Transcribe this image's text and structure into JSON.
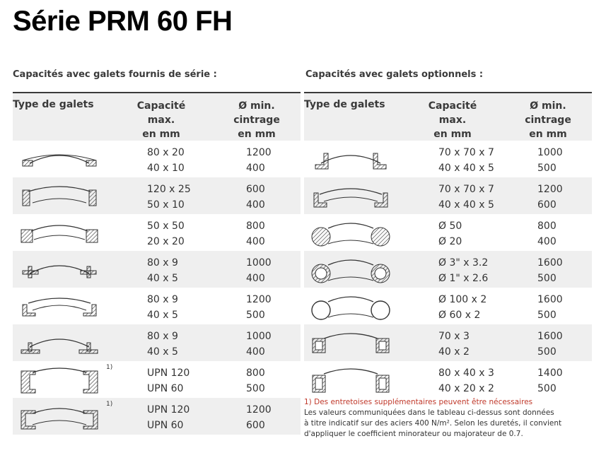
{
  "title": "Série PRM 60 FH",
  "left": {
    "heading": "Capacités avec galets fournis de série :",
    "columns": [
      "Type de galets",
      "Capacité\nmax.\nen mm",
      "Ø min.\ncintrage\nen mm"
    ],
    "rows": [
      {
        "icon": "flat-bar-roll-icon",
        "cap": [
          "80 x 20",
          "40 x 10"
        ],
        "dmin": [
          "1200",
          "400"
        ],
        "sup": ""
      },
      {
        "icon": "flat-bar-edge-roll-icon",
        "cap": [
          "120 x 25",
          "50 x 10"
        ],
        "dmin": [
          "600",
          "400"
        ],
        "sup": ""
      },
      {
        "icon": "square-bar-roll-icon",
        "cap": [
          "50 x 50",
          "20 x 20"
        ],
        "dmin": [
          "800",
          "400"
        ],
        "sup": ""
      },
      {
        "icon": "tee-flange-roll-icon",
        "cap": [
          "80 x 9",
          "40 x 5"
        ],
        "dmin": [
          "1000",
          "400"
        ],
        "sup": ""
      },
      {
        "icon": "angle-out-roll-icon",
        "cap": [
          "80 x 9",
          "40 x 5"
        ],
        "dmin": [
          "1200",
          "500"
        ],
        "sup": ""
      },
      {
        "icon": "tee-stem-roll-icon",
        "cap": [
          "80 x 9",
          "40 x 5"
        ],
        "dmin": [
          "1000",
          "400"
        ],
        "sup": ""
      },
      {
        "icon": "upn-web-roll-icon",
        "cap": [
          "UPN 120",
          "UPN 60"
        ],
        "dmin": [
          "800",
          "500"
        ],
        "sup": "1)"
      },
      {
        "icon": "upn-flange-roll-icon",
        "cap": [
          "UPN 120",
          "UPN 60"
        ],
        "dmin": [
          "1200",
          "600"
        ],
        "sup": "1)"
      }
    ]
  },
  "right": {
    "heading": "Capacités avec galets optionnels :",
    "columns": [
      "Type de galets",
      "Capacité\nmax.\nen mm",
      "Ø min.\ncintrage\nen mm"
    ],
    "rows": [
      {
        "icon": "angle-in-roll-icon",
        "cap": [
          "70 x 70 x 7",
          "40 x 40 x 5"
        ],
        "dmin": [
          "1000",
          "500"
        ],
        "sup": ""
      },
      {
        "icon": "angle-edge-roll-icon",
        "cap": [
          "70 x 70 x 7",
          "40 x 40 x 5"
        ],
        "dmin": [
          "1200",
          "600"
        ],
        "sup": ""
      },
      {
        "icon": "round-bar-roll-icon",
        "cap": [
          "Ø 50",
          "Ø 20"
        ],
        "dmin": [
          "800",
          "400"
        ],
        "sup": ""
      },
      {
        "icon": "pipe-roll-icon",
        "cap": [
          "Ø 3\" x 3.2",
          "Ø 1\" x 2.6"
        ],
        "dmin": [
          "1600",
          "500"
        ],
        "sup": ""
      },
      {
        "icon": "tube-roll-icon",
        "cap": [
          "Ø 100 x 2",
          "Ø 60 x 2"
        ],
        "dmin": [
          "1600",
          "500"
        ],
        "sup": ""
      },
      {
        "icon": "square-tube-roll-icon",
        "cap": [
          "70 x 3",
          "40 x 2"
        ],
        "dmin": [
          "1600",
          "500"
        ],
        "sup": ""
      },
      {
        "icon": "rect-tube-roll-icon",
        "cap": [
          "80 x 40 x 3",
          "40 x 20 x 2"
        ],
        "dmin": [
          "1400",
          "500"
        ],
        "sup": ""
      }
    ]
  },
  "notes": {
    "red": "1) Des entretoises supplémentaires peuvent être nécessaires",
    "line1": "Les valeurs communiquées dans le tableau ci-dessus sont données",
    "line2": "à titre indicatif sur des aciers 400 N/m². Selon les duretés, il convient",
    "line3": "d'appliquer le coefficient minorateur ou majorateur de 0.7."
  }
}
